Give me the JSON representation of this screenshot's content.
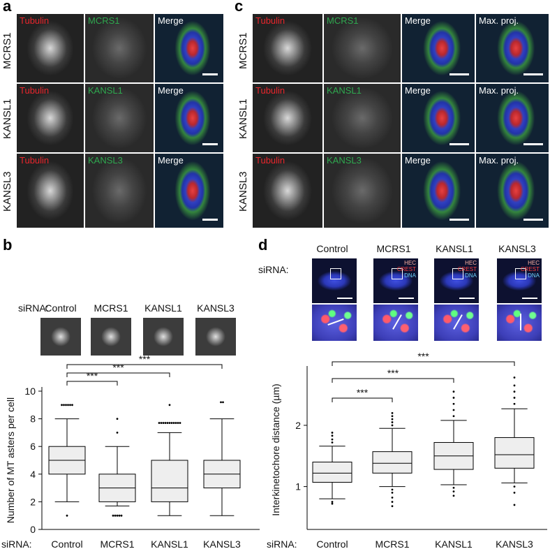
{
  "panels": {
    "a": "a",
    "b": "b",
    "c": "c",
    "d": "d"
  },
  "panel_a": {
    "rows": [
      {
        "row_label": "MCRS1",
        "tubulin": "Tubulin",
        "marker": "MCRS1",
        "merge": "Merge"
      },
      {
        "row_label": "KANSL1",
        "tubulin": "Tubulin",
        "marker": "KANSL1",
        "merge": "Merge"
      },
      {
        "row_label": "KANSL3",
        "tubulin": "Tubulin",
        "marker": "KANSL3",
        "merge": "Merge"
      }
    ]
  },
  "panel_c": {
    "rows": [
      {
        "row_label": "MCRS1",
        "tubulin": "Tubulin",
        "marker": "MCRS1",
        "merge": "Merge",
        "maxproj": "Max. proj."
      },
      {
        "row_label": "KANSL1",
        "tubulin": "Tubulin",
        "marker": "KANSL1",
        "merge": "Merge",
        "maxproj": "Max. proj."
      },
      {
        "row_label": "KANSL3",
        "tubulin": "Tubulin",
        "marker": "KANSL3",
        "merge": "Merge",
        "maxproj": "Max. proj."
      }
    ]
  },
  "panel_b": {
    "sirna_label": "siRNA:",
    "conditions": [
      "Control",
      "MCRS1",
      "KANSL1",
      "KANSL3"
    ]
  },
  "panel_d": {
    "sirna_label": "siRNA:",
    "conditions": [
      "Control",
      "MCRS1",
      "KANSL1",
      "KANSL3"
    ],
    "legend": {
      "hec": "HEC",
      "crest": "CREST",
      "dna": "DNA"
    }
  },
  "colors": {
    "tubulin": "#e8262c",
    "marker": "#2fa84f",
    "dna": "#2c3fd6",
    "crest_legend": "#ff4040",
    "hec_legend": "#ffb0a0",
    "dna_legend": "#6fd3ff"
  },
  "chart_data": [
    {
      "type": "box",
      "panel": "b",
      "ylabel": "Number of MT asters per cell",
      "xlabel": "siRNA:",
      "categories": [
        "Control",
        "MCRS1",
        "KANSL1",
        "KANSL3"
      ],
      "ylim": [
        0,
        10
      ],
      "yticks": [
        0,
        2,
        4,
        6,
        8,
        10
      ],
      "boxes": [
        {
          "name": "Control",
          "whisker_low": 2,
          "q1": 4,
          "median": 5,
          "q3": 6,
          "whisker_high": 8,
          "outliers": [
            1,
            9,
            9,
            9,
            9,
            9,
            9
          ]
        },
        {
          "name": "MCRS1",
          "whisker_low": 1.7,
          "q1": 2,
          "median": 3,
          "q3": 4,
          "whisker_high": 6,
          "outliers": [
            1,
            1,
            1,
            1,
            1,
            8,
            7
          ]
        },
        {
          "name": "KANSL1",
          "whisker_low": 1,
          "q1": 2,
          "median": 3,
          "q3": 5,
          "whisker_high": 7,
          "outliers": [
            7.7,
            7.7,
            7.7,
            7.7,
            7.7,
            7.7,
            7.7,
            7.7,
            7.7,
            7.7,
            7.7,
            9
          ]
        },
        {
          "name": "KANSL3",
          "whisker_low": 1,
          "q1": 3,
          "median": 4,
          "q3": 5,
          "whisker_high": 8,
          "outliers": [
            9.2,
            9.2
          ]
        }
      ],
      "significance": [
        {
          "from": "Control",
          "to": "MCRS1",
          "label": "***"
        },
        {
          "from": "Control",
          "to": "KANSL1",
          "label": "***"
        },
        {
          "from": "Control",
          "to": "KANSL3",
          "label": "***"
        }
      ]
    },
    {
      "type": "box",
      "panel": "d",
      "ylabel": "Interkinetochore distance (µm)",
      "xlabel": "siRNA:",
      "categories": [
        "Control",
        "MCRS1",
        "KANSL1",
        "KANSL3"
      ],
      "ylim": [
        0.3,
        2.9
      ],
      "yticks": [
        1,
        2
      ],
      "boxes": [
        {
          "name": "Control",
          "whisker_low": 0.8,
          "q1": 1.07,
          "median": 1.22,
          "q3": 1.4,
          "whisker_high": 1.66,
          "outliers": [
            1.72,
            1.77,
            1.83,
            1.88,
            0.75,
            0.72
          ]
        },
        {
          "name": "MCRS1",
          "whisker_low": 1.0,
          "q1": 1.22,
          "median": 1.38,
          "q3": 1.57,
          "whisker_high": 1.95,
          "outliers": [
            2.0,
            2.05,
            2.1,
            2.15,
            2.2,
            0.95,
            0.9,
            0.82,
            0.75,
            0.68
          ]
        },
        {
          "name": "KANSL1",
          "whisker_low": 1.03,
          "q1": 1.28,
          "median": 1.5,
          "q3": 1.72,
          "whisker_high": 2.08,
          "outliers": [
            2.15,
            2.25,
            2.35,
            2.45,
            2.55,
            0.98,
            0.92,
            0.85
          ]
        },
        {
          "name": "KANSL3",
          "whisker_low": 1.06,
          "q1": 1.3,
          "median": 1.52,
          "q3": 1.8,
          "whisker_high": 2.27,
          "outliers": [
            2.35,
            2.45,
            2.55,
            2.65,
            2.78,
            1.0,
            0.9,
            0.7
          ]
        }
      ],
      "significance": [
        {
          "from": "Control",
          "to": "MCRS1",
          "label": "***"
        },
        {
          "from": "Control",
          "to": "KANSL1",
          "label": "***"
        },
        {
          "from": "Control",
          "to": "KANSL3",
          "label": "***"
        }
      ]
    }
  ]
}
